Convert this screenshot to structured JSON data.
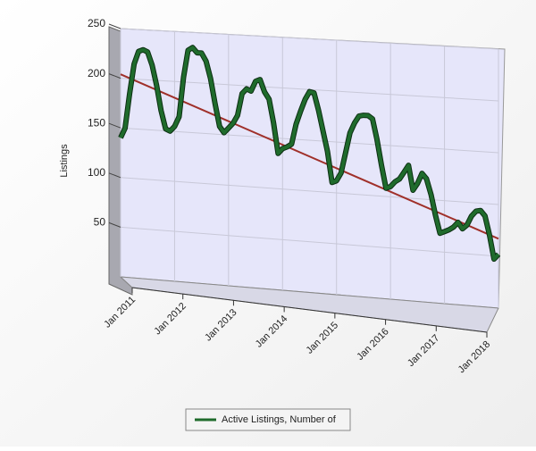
{
  "chart_data": {
    "type": "line3d",
    "y_label": "Listings",
    "categories": [
      "Jan 2011",
      null,
      null,
      null,
      null,
      null,
      null,
      null,
      null,
      null,
      null,
      null,
      "Jan 2012",
      null,
      null,
      null,
      null,
      null,
      null,
      null,
      null,
      null,
      null,
      null,
      "Jan 2013",
      null,
      null,
      null,
      null,
      null,
      null,
      null,
      null,
      null,
      null,
      null,
      "Jan 2014",
      null,
      null,
      null,
      null,
      null,
      null,
      null,
      null,
      null,
      null,
      null,
      "Jan 2015",
      null,
      null,
      null,
      null,
      null,
      null,
      null,
      null,
      null,
      null,
      null,
      "Jan 2016",
      null,
      null,
      null,
      null,
      null,
      null,
      null,
      null,
      null,
      null,
      null,
      "Jan 2017",
      null,
      null,
      null,
      null,
      null,
      null,
      null,
      null,
      null,
      null,
      null,
      "Jan 2018"
    ],
    "series": [
      {
        "name": "Active Listings, Number of",
        "color": "#1f6b2c",
        "values": [
          140,
          150,
          185,
          215,
          228,
          230,
          228,
          215,
          195,
          170,
          152,
          150,
          155,
          165,
          205,
          232,
          235,
          230,
          230,
          222,
          205,
          180,
          158,
          152,
          157,
          162,
          170,
          192,
          197,
          195,
          205,
          207,
          195,
          188,
          165,
          135,
          140,
          142,
          145,
          165,
          178,
          190,
          198,
          197,
          180,
          160,
          140,
          110,
          112,
          120,
          140,
          160,
          170,
          177,
          178,
          178,
          175,
          155,
          130,
          108,
          110,
          115,
          118,
          125,
          132,
          108,
          115,
          125,
          120,
          105,
          85,
          68,
          70,
          72,
          75,
          80,
          74,
          78,
          87,
          92,
          93,
          88,
          70,
          47,
          52
        ]
      }
    ],
    "trendline": {
      "start": 204,
      "end": 67,
      "color": "#a0302a"
    },
    "ylim": [
      0,
      250
    ],
    "yticks": [
      50,
      100,
      150,
      200,
      250
    ],
    "grid": true
  }
}
